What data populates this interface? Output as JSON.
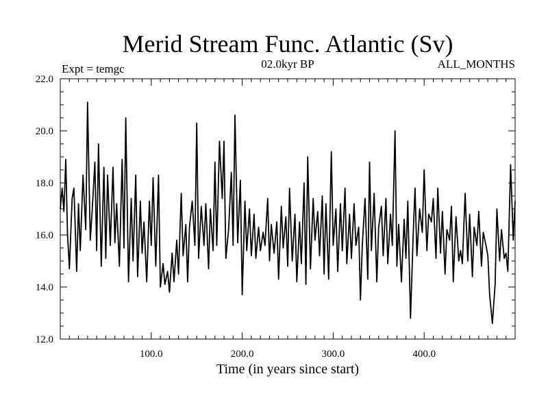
{
  "chart_data": {
    "type": "line",
    "title": "Merid Stream Func. Atlantic (Sv)",
    "subtitle_left": "Expt = temgc",
    "subtitle_center": "02.0kyr BP",
    "subtitle_right": "ALL_MONTHS",
    "xlabel": "Time (in years since start)",
    "ylabel": "",
    "xlim": [
      0,
      500
    ],
    "ylim": [
      12.0,
      22.0
    ],
    "xticks": [
      100,
      200,
      300,
      400
    ],
    "xtick_labels": [
      "100.0",
      "200.0",
      "300.0",
      "400.0"
    ],
    "yticks": [
      12,
      14,
      16,
      18,
      20,
      22
    ],
    "ytick_labels": [
      "12.0",
      "14.0",
      "16.0",
      "18.0",
      "20.0",
      "22.0"
    ],
    "grid": false,
    "series": [
      {
        "name": "Merid Stream Func. Atlantic",
        "x": [
          0,
          2,
          4,
          6,
          8,
          10,
          13,
          15,
          18,
          20,
          22,
          25,
          28,
          30,
          33,
          35,
          38,
          40,
          42,
          45,
          48,
          50,
          52,
          55,
          58,
          60,
          62,
          65,
          68,
          70,
          72,
          75,
          78,
          80,
          83,
          85,
          88,
          90,
          92,
          95,
          98,
          100,
          102,
          105,
          108,
          110,
          113,
          115,
          118,
          120,
          123,
          125,
          128,
          130,
          133,
          135,
          138,
          140,
          142,
          145,
          148,
          150,
          152,
          155,
          158,
          160,
          163,
          165,
          168,
          170,
          172,
          175,
          178,
          180,
          182,
          185,
          188,
          190,
          192,
          195,
          198,
          200,
          203,
          205,
          208,
          210,
          213,
          215,
          218,
          220,
          223,
          225,
          228,
          230,
          232,
          235,
          238,
          240,
          243,
          245,
          248,
          250,
          252,
          255,
          258,
          260,
          263,
          265,
          268,
          270,
          272,
          275,
          278,
          280,
          283,
          285,
          288,
          290,
          292,
          295,
          298,
          300,
          303,
          305,
          308,
          310,
          313,
          315,
          318,
          320,
          323,
          325,
          328,
          330,
          332,
          335,
          338,
          340,
          342,
          345,
          348,
          350,
          353,
          355,
          358,
          360,
          363,
          365,
          368,
          370,
          372,
          375,
          378,
          380,
          382,
          385,
          388,
          390,
          392,
          395,
          398,
          400,
          403,
          405,
          408,
          410,
          413,
          415,
          418,
          420,
          423,
          425,
          428,
          430,
          432,
          435,
          438,
          440,
          442,
          445,
          448,
          450,
          453,
          455,
          458,
          460,
          463,
          465,
          468,
          470,
          472,
          475,
          478,
          480,
          483,
          485,
          488,
          490,
          492,
          495,
          498,
          500
        ],
        "values": [
          17.0,
          17.8,
          16.9,
          18.9,
          16.0,
          14.7,
          17.4,
          17.8,
          14.6,
          17.2,
          15.4,
          18.3,
          16.2,
          21.1,
          15.8,
          16.9,
          18.8,
          15.4,
          19.5,
          14.8,
          18.6,
          15.1,
          18.3,
          15.6,
          18.6,
          15.7,
          17.2,
          14.8,
          18.9,
          15.5,
          20.5,
          14.2,
          17.4,
          15.0,
          18.3,
          14.4,
          17.3,
          15.3,
          16.5,
          14.2,
          17.3,
          15.6,
          18.2,
          14.8,
          18.3,
          14.0,
          14.9,
          14.1,
          14.6,
          13.8,
          15.3,
          14.2,
          15.8,
          14.5,
          17.6,
          15.2,
          16.4,
          14.2,
          16.3,
          17.3,
          15.6,
          20.3,
          15.1,
          17.1,
          15.6,
          17.2,
          14.7,
          17.0,
          15.4,
          18.8,
          15.6,
          19.6,
          17.4,
          19.6,
          15.1,
          16.2,
          18.4,
          15.6,
          20.6,
          15.7,
          18.1,
          13.7,
          17.3,
          15.4,
          17.0,
          15.2,
          16.8,
          15.1,
          16.3,
          15.4,
          16.1,
          15.6,
          17.4,
          15.0,
          16.4,
          15.3,
          16.5,
          14.3,
          17.1,
          15.5,
          16.7,
          14.8,
          17.8,
          15.0,
          16.8,
          14.2,
          16.5,
          14.9,
          18.0,
          14.1,
          19.0,
          14.7,
          17.4,
          15.8,
          16.9,
          15.2,
          17.5,
          14.5,
          17.2,
          14.3,
          19.2,
          15.6,
          17.0,
          14.6,
          17.2,
          15.4,
          17.8,
          14.9,
          16.8,
          15.1,
          17.2,
          15.6,
          16.3,
          13.5,
          15.6,
          17.4,
          14.3,
          18.8,
          15.4,
          17.6,
          14.2,
          16.3,
          17.1,
          15.2,
          17.4,
          14.9,
          16.8,
          15.6,
          20.0,
          14.8,
          16.4,
          14.2,
          16.6,
          15.1,
          17.3,
          12.8,
          16.1,
          17.8,
          15.2,
          17.0,
          16.1,
          18.5,
          15.4,
          16.8,
          16.5,
          17.4,
          15.1,
          17.8,
          15.3,
          16.9,
          14.5,
          16.2,
          15.8,
          17.1,
          14.2,
          16.7,
          15.0,
          15.4,
          14.9,
          17.6,
          15.0,
          16.8,
          14.4,
          16.3,
          15.6,
          16.9,
          14.8,
          16.1,
          15.6,
          15.2,
          13.7,
          12.6,
          14.1,
          17.0,
          15.0,
          16.2,
          15.1,
          15.3,
          14.6,
          18.7,
          15.8,
          17.3
        ]
      }
    ]
  }
}
